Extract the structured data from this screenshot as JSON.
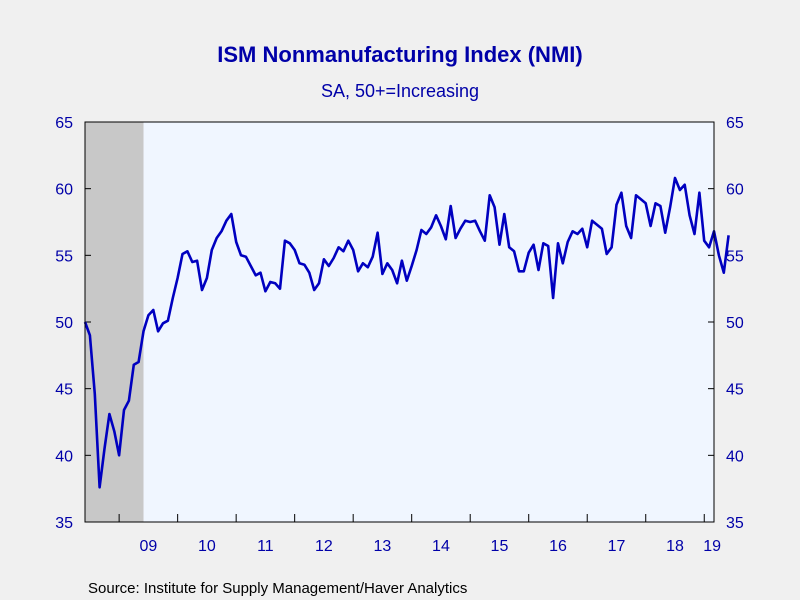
{
  "chart_data": {
    "type": "line",
    "title": "ISM Nonmanufacturing Index (NMI)",
    "subtitle": "SA, 50+=Increasing",
    "source": "Source: Institute for Supply Management/Haver Analytics",
    "x_tick_labels": [
      "09",
      "10",
      "11",
      "12",
      "13",
      "14",
      "15",
      "16",
      "17",
      "18",
      "19"
    ],
    "y_ticks": [
      35,
      40,
      45,
      50,
      55,
      60,
      65
    ],
    "ylim": [
      35,
      65
    ],
    "xlim": [
      "2008-06",
      "2019-03"
    ],
    "grid": false,
    "recession_shading": {
      "start": "2008-06",
      "end": "2009-06",
      "color": "#c8c8c8"
    },
    "plot_background": "#f0f6ff",
    "line_color": "#0000c0",
    "series": [
      {
        "x_start": "2008-06",
        "frequency": "monthly",
        "values": [
          50.0,
          49.0,
          44.6,
          37.6,
          40.5,
          43.1,
          41.8,
          40.0,
          43.4,
          44.1,
          46.8,
          47.0,
          49.3,
          50.5,
          50.9,
          49.3,
          49.9,
          50.1,
          51.8,
          53.3,
          55.1,
          55.3,
          54.5,
          54.6,
          52.4,
          53.3,
          55.4,
          56.3,
          56.8,
          57.6,
          58.1,
          56.0,
          55.0,
          54.9,
          54.2,
          53.5,
          53.7,
          52.3,
          53.0,
          52.9,
          52.5,
          56.1,
          55.9,
          55.4,
          54.4,
          54.3,
          53.7,
          52.4,
          52.9,
          54.7,
          54.2,
          54.8,
          55.6,
          55.3,
          56.1,
          55.4,
          53.8,
          54.4,
          54.1,
          54.9,
          56.7,
          53.6,
          54.4,
          53.9,
          52.9,
          54.6,
          53.1,
          54.2,
          55.4,
          56.9,
          56.6,
          57.1,
          58.0,
          57.2,
          56.2,
          58.7,
          56.3,
          57.0,
          57.6,
          57.5,
          57.6,
          56.8,
          56.1,
          59.5,
          58.6,
          55.8,
          58.1,
          55.6,
          55.3,
          53.8,
          53.8,
          55.2,
          55.8,
          53.9,
          55.9,
          55.7,
          51.8,
          55.9,
          54.4,
          56.0,
          56.8,
          56.6,
          57.0,
          55.6,
          57.6,
          57.3,
          57.0,
          55.1,
          55.6,
          58.8,
          59.7,
          57.2,
          56.3,
          59.5,
          59.2,
          58.9,
          57.2,
          58.9,
          58.7,
          56.7,
          58.6,
          60.8,
          59.9,
          60.3,
          58.0,
          56.6,
          59.7,
          56.1,
          55.6,
          56.8,
          55.0,
          53.7,
          56.5
        ]
      }
    ]
  }
}
